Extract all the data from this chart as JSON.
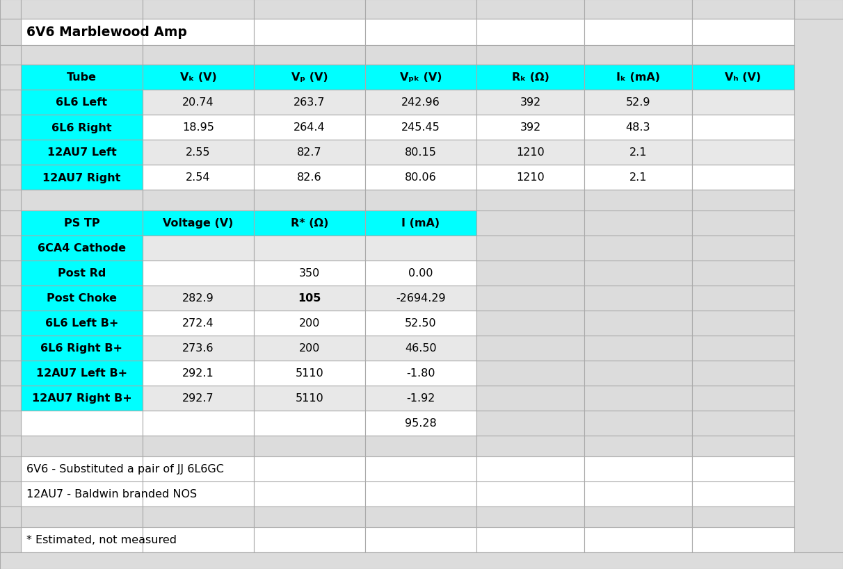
{
  "title": "6V6 Marblewood Amp",
  "cyan": "#00FFFF",
  "light_gray": "#E8E8E8",
  "white": "#FFFFFF",
  "bg": "#DCDCDC",
  "figsize": [
    12.12,
    8.2
  ],
  "dpi": 100,
  "font_size": 11.5,
  "title_font_size": 13.5,
  "t1_headers": [
    "Tube",
    "Vₖ (V)",
    "Vₚ (V)",
    "Vₚₖ (V)",
    "Rₖ (Ω)",
    "Iₖ (mA)",
    "Vₕ (V)"
  ],
  "t1_rows": [
    [
      "6L6 Left",
      "20.74",
      "263.7",
      "242.96",
      "392",
      "52.9",
      ""
    ],
    [
      "6L6 Right",
      "18.95",
      "264.4",
      "245.45",
      "392",
      "48.3",
      ""
    ],
    [
      "12AU7 Left",
      "2.55",
      "82.7",
      "80.15",
      "1210",
      "2.1",
      ""
    ],
    [
      "12AU7 Right",
      "2.54",
      "82.6",
      "80.06",
      "1210",
      "2.1",
      ""
    ]
  ],
  "t2_headers": [
    "PS TP",
    "Voltage (V)",
    "R* (Ω)",
    "I (mA)",
    "",
    "",
    ""
  ],
  "t2_rows": [
    [
      "6CA4 Cathode",
      "",
      "",
      "",
      "",
      "",
      ""
    ],
    [
      "Post Rd",
      "",
      "350",
      "0.00",
      "",
      "",
      ""
    ],
    [
      "Post Choke",
      "282.9",
      "105",
      "-2694.29",
      "",
      "",
      ""
    ],
    [
      "6L6 Left B+",
      "272.4",
      "200",
      "52.50",
      "",
      "",
      ""
    ],
    [
      "6L6 Right B+",
      "273.6",
      "200",
      "46.50",
      "",
      "",
      ""
    ],
    [
      "12AU7 Left B+",
      "292.1",
      "5110",
      "-1.80",
      "",
      "",
      ""
    ],
    [
      "12AU7 Right B+",
      "292.7",
      "5110",
      "-1.92",
      "",
      "",
      ""
    ],
    [
      "",
      "",
      "",
      "95.28",
      "",
      "",
      ""
    ]
  ],
  "t2_row0_bold": [
    true,
    true,
    true,
    true,
    true,
    true,
    true,
    false
  ],
  "note1": "6V6 - Substituted a pair of JJ 6L6GC",
  "note2": "12AU7 - Baldwin branded NOS",
  "note3": "* Estimated, not measured"
}
